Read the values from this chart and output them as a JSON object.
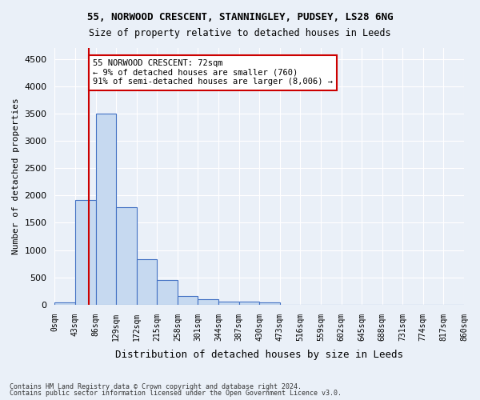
{
  "title1": "55, NORWOOD CRESCENT, STANNINGLEY, PUDSEY, LS28 6NG",
  "title2": "Size of property relative to detached houses in Leeds",
  "xlabel": "Distribution of detached houses by size in Leeds",
  "ylabel": "Number of detached properties",
  "bar_values": [
    50,
    1920,
    3500,
    1790,
    840,
    460,
    165,
    100,
    60,
    55,
    40,
    0,
    0,
    0,
    0,
    0,
    0,
    0,
    0,
    0
  ],
  "bar_labels": [
    "0sqm",
    "43sqm",
    "86sqm",
    "129sqm",
    "172sqm",
    "215sqm",
    "258sqm",
    "301sqm",
    "344sqm",
    "387sqm",
    "430sqm",
    "473sqm",
    "516sqm",
    "559sqm",
    "602sqm",
    "645sqm",
    "688sqm",
    "731sqm",
    "774sqm",
    "817sqm",
    "860sqm"
  ],
  "bar_color": "#c6d9f0",
  "bar_edge_color": "#4472c4",
  "property_line_x": 72,
  "property_line_color": "#cc0000",
  "ylim": [
    0,
    4700
  ],
  "yticks": [
    0,
    500,
    1000,
    1500,
    2000,
    2500,
    3000,
    3500,
    4000,
    4500
  ],
  "annotation_text": "55 NORWOOD CRESCENT: 72sqm\n← 9% of detached houses are smaller (760)\n91% of semi-detached houses are larger (8,006) →",
  "annotation_box_color": "#ffffff",
  "annotation_box_edge_color": "#cc0000",
  "footer1": "Contains HM Land Registry data © Crown copyright and database right 2024.",
  "footer2": "Contains public sector information licensed under the Open Government Licence v3.0.",
  "bg_color": "#eaf0f8",
  "plot_bg_color": "#eaf0f8",
  "grid_color": "#ffffff",
  "bin_width": 43
}
